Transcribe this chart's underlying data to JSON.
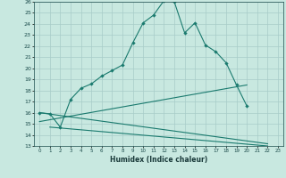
{
  "xlabel": "Humidex (Indice chaleur)",
  "line1_x": [
    0,
    1,
    2,
    3,
    4,
    5,
    6,
    7,
    8,
    9,
    10,
    11,
    12,
    13,
    14,
    15,
    16,
    17,
    18,
    19,
    20
  ],
  "line1_y": [
    16.0,
    15.9,
    14.7,
    17.2,
    18.2,
    18.6,
    19.3,
    19.8,
    20.3,
    22.3,
    24.1,
    24.8,
    26.1,
    26.0,
    23.2,
    24.1,
    22.1,
    21.5,
    20.5,
    18.5,
    16.6
  ],
  "line2_x": [
    0,
    22
  ],
  "line2_y": [
    16.0,
    13.2
  ],
  "line3_x": [
    1,
    22
  ],
  "line3_y": [
    14.7,
    13.0
  ],
  "line4_x": [
    0,
    20
  ],
  "line4_y": [
    15.2,
    18.5
  ],
  "line_color": "#1a7a6e",
  "bg_color": "#c8e8e0",
  "grid_color": "#a8ccc8",
  "xlim": [
    -0.5,
    23.5
  ],
  "ylim": [
    13,
    26
  ],
  "yticks": [
    13,
    14,
    15,
    16,
    17,
    18,
    19,
    20,
    21,
    22,
    23,
    24,
    25,
    26
  ],
  "xticks": [
    0,
    1,
    2,
    3,
    4,
    5,
    6,
    7,
    8,
    9,
    10,
    11,
    12,
    13,
    14,
    15,
    16,
    17,
    18,
    19,
    20,
    21,
    22,
    23
  ]
}
